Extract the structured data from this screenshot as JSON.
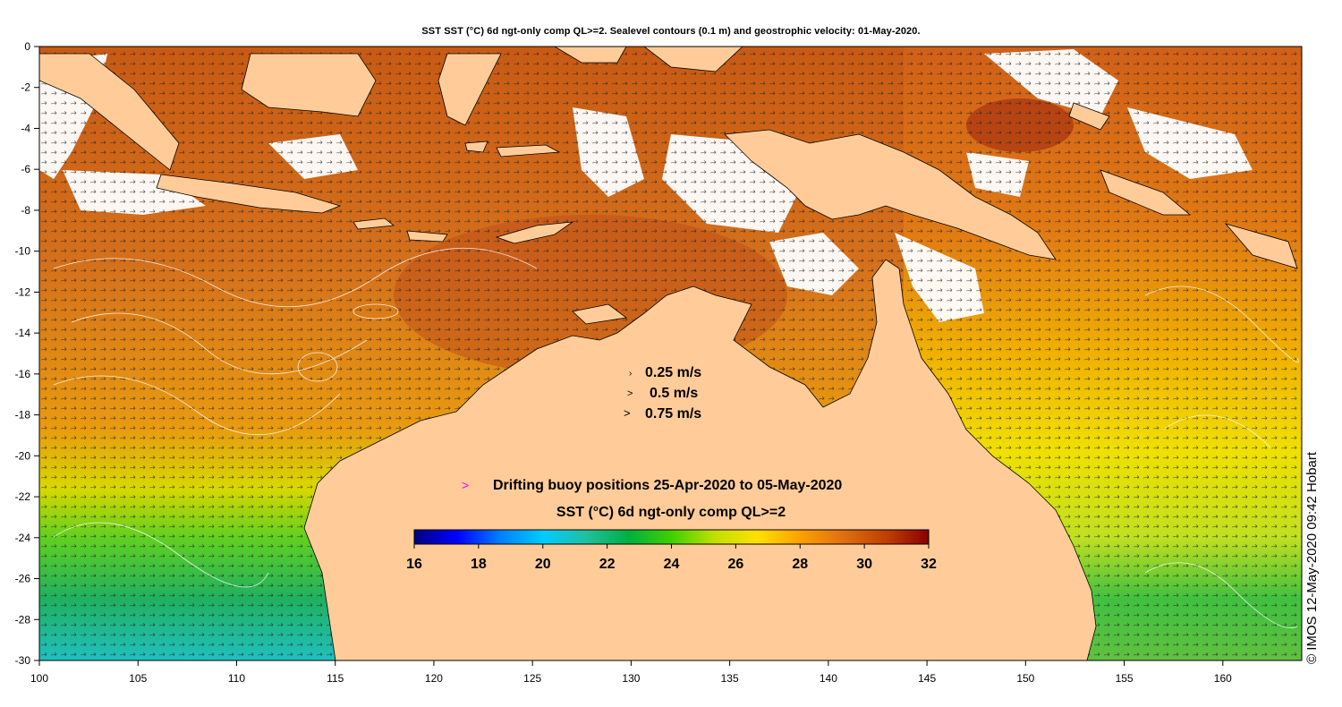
{
  "title": "SST SST (°C) 6d ngt-only comp QL>=2. Sealevel contours (0.1 m) and geostrophic velocity: 01-May-2020.",
  "axes": {
    "x_ticks": [
      "100",
      "105",
      "110",
      "115",
      "120",
      "125",
      "130",
      "135",
      "140",
      "145",
      "150",
      "155",
      "160"
    ],
    "y_ticks": [
      "0",
      "-2",
      "-4",
      "-6",
      "-8",
      "-10",
      "-12",
      "-14",
      "-16",
      "-18",
      "-20",
      "-22",
      "-24",
      "-26",
      "-28",
      "-30"
    ],
    "lon_range": [
      100,
      164
    ],
    "lat_range": [
      -30,
      0
    ]
  },
  "velocity_legend": [
    {
      "label": "0.25 m/s",
      "symbol": "›"
    },
    {
      "label": "0.5 m/s",
      "symbol": ">"
    },
    {
      "label": "0.75 m/s",
      "symbol": ">"
    }
  ],
  "buoy_legend": {
    "symbol": ">",
    "label": "Drifting buoy positions 25-Apr-2020 to 05-May-2020",
    "color": "#ff00ff"
  },
  "colorbar": {
    "title": "SST (°C) 6d ngt-only comp QL>=2",
    "ticks": [
      "16",
      "18",
      "20",
      "22",
      "24",
      "26",
      "28",
      "30",
      "32"
    ],
    "range": [
      16,
      32
    ],
    "colors": [
      "#00007f",
      "#0000ff",
      "#007fff",
      "#00ccff",
      "#20c0a0",
      "#00b040",
      "#40d000",
      "#c0e000",
      "#ffe000",
      "#ffa000",
      "#e07010",
      "#c04000",
      "#8b0000"
    ]
  },
  "credit": "© IMOS 12-May-2020 09:42 Hobart",
  "colors": {
    "land": "#ffcc99",
    "ocean_warm": "#d4661a",
    "cloud": "#ffffff"
  }
}
